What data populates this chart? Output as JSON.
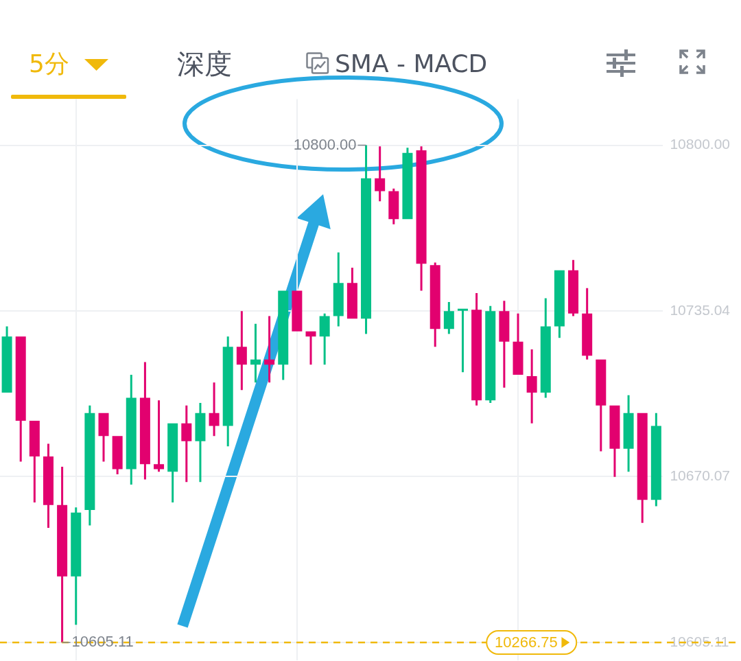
{
  "chart_data": {
    "type": "candlestick",
    "categories": [
      null,
      null,
      null,
      null,
      null,
      null,
      null,
      null,
      null,
      null,
      null,
      null,
      null,
      null,
      null,
      null,
      null,
      null,
      null,
      null,
      null,
      null,
      null,
      null,
      null,
      null,
      null,
      null,
      null,
      null,
      null,
      null,
      null,
      null,
      null,
      null,
      null,
      null,
      null,
      null,
      null,
      null,
      null,
      null,
      null,
      null,
      null,
      null
    ],
    "ohlc": [
      [
        10703,
        10729,
        10703,
        10725
      ],
      [
        10725,
        10725,
        10676,
        10692
      ],
      [
        10692,
        10692,
        10660,
        10678
      ],
      [
        10678,
        10683,
        10650,
        10659
      ],
      [
        10659,
        10674,
        10605.11,
        10631
      ],
      [
        10631,
        10658,
        10612,
        10656
      ],
      [
        10657,
        10698,
        10651,
        10695
      ],
      [
        10695,
        10695,
        10676,
        10686
      ],
      [
        10686,
        10686,
        10671,
        10673
      ],
      [
        10673,
        10710,
        10667,
        10701
      ],
      [
        10701,
        10715,
        10669,
        10675
      ],
      [
        10675,
        10700,
        10672,
        10673
      ],
      [
        10672,
        10691,
        10660,
        10691
      ],
      [
        10691,
        10698,
        10668,
        10684
      ],
      [
        10684,
        10699,
        10668,
        10695
      ],
      [
        10695,
        10707,
        10686,
        10690
      ],
      [
        10690,
        10725,
        10682,
        10721
      ],
      [
        10721,
        10735,
        10704,
        10714
      ],
      [
        10714,
        10730,
        10707,
        10716
      ],
      [
        10716,
        10733,
        10707,
        10714
      ],
      [
        10714,
        10743,
        10708,
        10743
      ],
      [
        10743,
        10743,
        10727,
        10727
      ],
      [
        10727,
        10727,
        10714,
        10725
      ],
      [
        10725,
        10734,
        10714,
        10733
      ],
      [
        10733,
        10758,
        10729,
        10746
      ],
      [
        10746,
        10752,
        10732,
        10732
      ],
      [
        10732,
        10800,
        10726,
        10787
      ],
      [
        10787,
        10799.5,
        10778,
        10782
      ],
      [
        10782,
        10783,
        10769,
        10771
      ],
      [
        10771,
        10799,
        10771,
        10797
      ],
      [
        10798,
        10799.5,
        10743,
        10753.5
      ],
      [
        10753,
        10754,
        10721,
        10728
      ],
      [
        10728,
        10738.5,
        10726,
        10735
      ],
      [
        10735.5,
        10735.5,
        10711,
        10735.5
      ],
      [
        10735.5,
        10742,
        10698,
        10700
      ],
      [
        10700,
        10737,
        10699,
        10735
      ],
      [
        10735,
        10739,
        10705,
        10723
      ],
      [
        10723,
        10734,
        10710,
        10710
      ],
      [
        10709.5,
        10720,
        10691,
        10703
      ],
      [
        10703,
        10740,
        10701,
        10729
      ],
      [
        10729,
        10751,
        10724.5,
        10751
      ],
      [
        10751,
        10755,
        10733,
        10734
      ],
      [
        10734,
        10744,
        10716,
        10717.5
      ],
      [
        10716,
        10716,
        10680,
        10698
      ],
      [
        10698,
        10698,
        10670,
        10681
      ],
      [
        10681,
        10702,
        10672,
        10695
      ],
      [
        10695,
        10695,
        10652,
        10661
      ],
      [
        10661,
        10695,
        10658.5,
        10690
      ]
    ],
    "colors": [
      "#03c087",
      "#e2016f",
      "#e2016f",
      "#e2016f",
      "#e2016f",
      "#03c087",
      "#03c087",
      "#e2016f",
      "#e2016f",
      "#03c087",
      "#e2016f",
      "#e2016f",
      "#03c087",
      "#e2016f",
      "#03c087",
      "#e2016f",
      "#03c087",
      "#e2016f",
      "#03c087",
      "#e2016f",
      "#03c087",
      "#e2016f",
      "#e2016f",
      "#03c087",
      "#03c087",
      "#e2016f",
      "#03c087",
      "#e2016f",
      "#e2016f",
      "#03c087",
      "#e2016f",
      "#e2016f",
      "#03c087",
      "#03c087",
      "#e2016f",
      "#03c087",
      "#e2016f",
      "#e2016f",
      "#e2016f",
      "#03c087",
      "#03c087",
      "#e2016f",
      "#e2016f",
      "#e2016f",
      "#e2016f",
      "#03c087",
      "#e2016f",
      "#03c087"
    ],
    "ylim": [
      10598,
      10818
    ],
    "yticks": [
      {
        "value": 10800,
        "label": "10800.00"
      },
      {
        "value": 10735.04,
        "label": "10735.04"
      },
      {
        "value": 10670.07,
        "label": "10670.07"
      },
      {
        "value": 10605.11,
        "label": "10605.11"
      }
    ],
    "grid": true,
    "tick_labels": "y",
    "ref_lines": [
      {
        "axis": "y",
        "value": 10605.11,
        "color": "#f0b90b",
        "line_style": "dashed"
      }
    ],
    "annotations": [
      "5分",
      "深度",
      "SMA - MACD",
      "10800.00",
      "10605.11",
      "10266.75"
    ]
  }
}
